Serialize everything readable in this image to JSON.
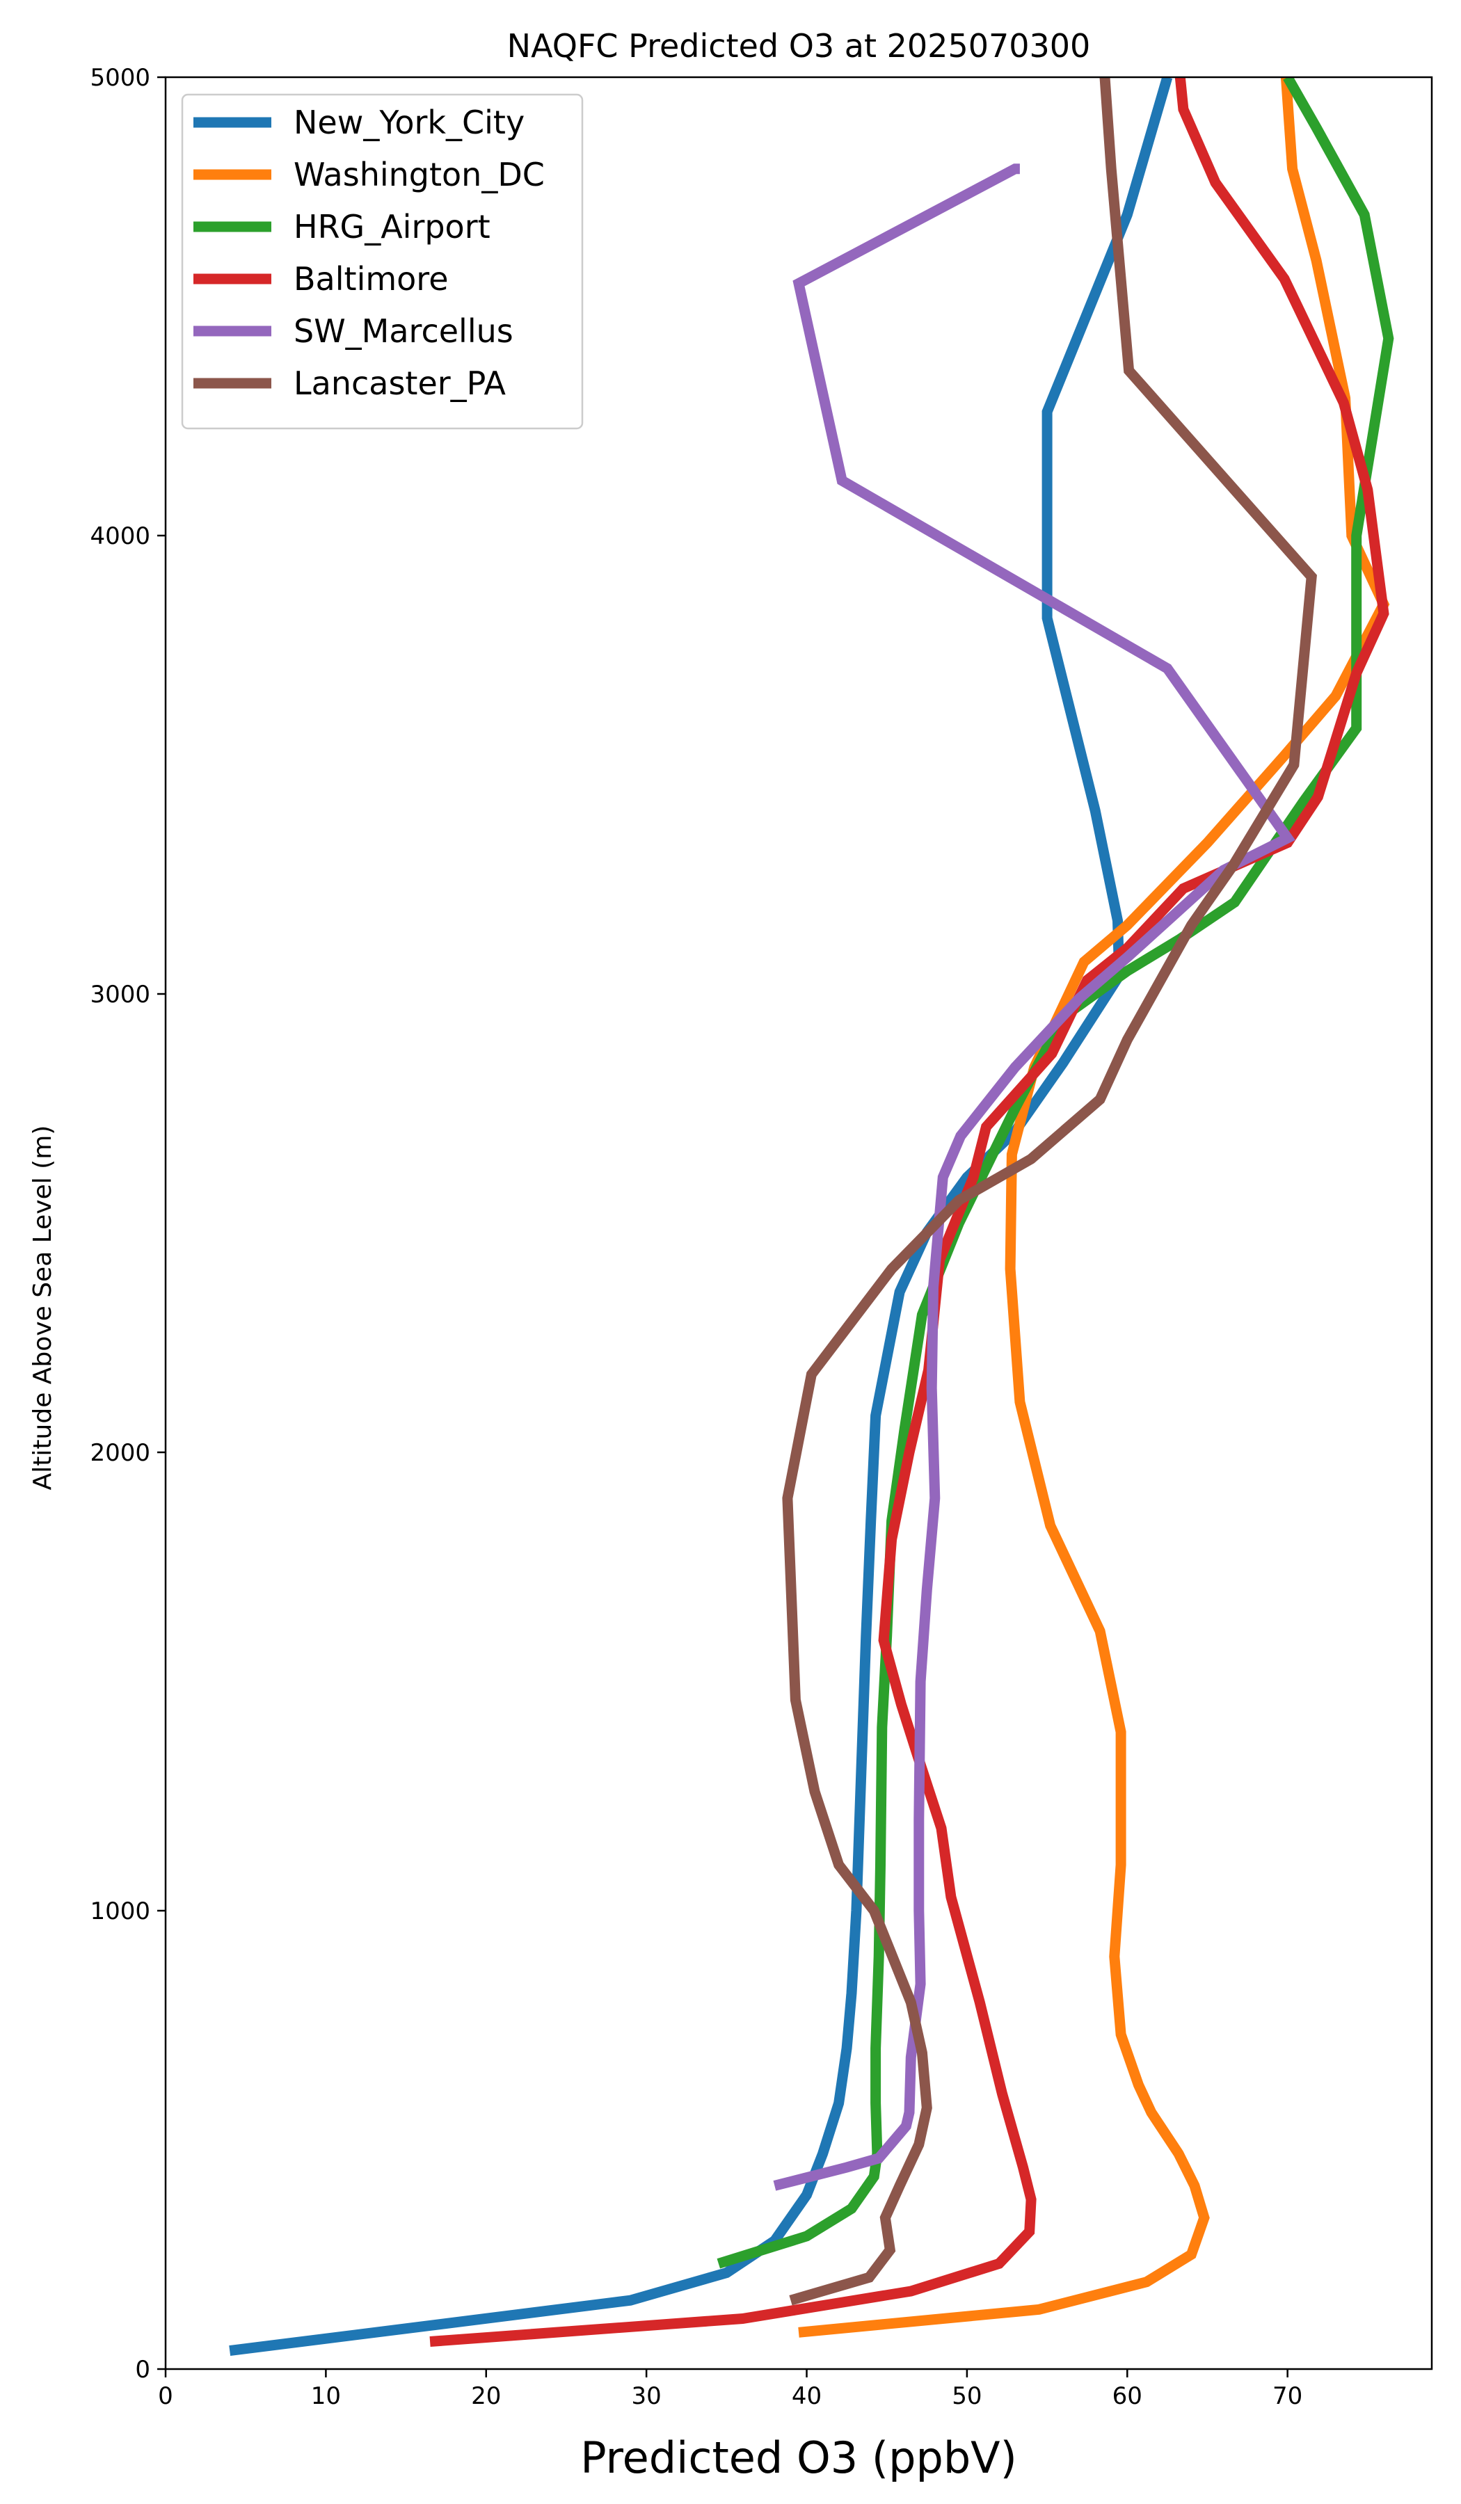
{
  "chart_data": {
    "type": "line",
    "title": "NAQFC Predicted O3 at 2025070300",
    "xlabel": "Predicted O3 (ppbV)",
    "ylabel": "Altitude Above Sea Level (m)",
    "xlim": [
      0,
      79
    ],
    "ylim": [
      0,
      5000
    ],
    "xticks": [
      0,
      10,
      20,
      30,
      40,
      50,
      60,
      70
    ],
    "yticks": [
      0,
      1000,
      2000,
      3000,
      4000,
      5000
    ],
    "grid": false,
    "legend_position": "top-left",
    "series": [
      {
        "name": "New_York_City",
        "color": "#1f77b4",
        "points": [
          [
            4,
            40
          ],
          [
            29,
            150
          ],
          [
            35,
            210
          ],
          [
            38,
            280
          ],
          [
            40,
            380
          ],
          [
            41,
            470
          ],
          [
            42,
            580
          ],
          [
            42.5,
            700
          ],
          [
            42.8,
            820
          ],
          [
            43.1,
            1000
          ],
          [
            43.4,
            1300
          ],
          [
            43.7,
            1600
          ],
          [
            44,
            1850
          ],
          [
            44.3,
            2080
          ],
          [
            45.8,
            2350
          ],
          [
            47.5,
            2480
          ],
          [
            50,
            2600
          ],
          [
            53,
            2700
          ],
          [
            56,
            2850
          ],
          [
            59.5,
            3040
          ],
          [
            59.4,
            3160
          ],
          [
            58,
            3400
          ],
          [
            55,
            3820
          ],
          [
            55,
            4270
          ],
          [
            60,
            4700
          ],
          [
            62.5,
            5000
          ]
        ]
      },
      {
        "name": "Washington_DC",
        "color": "#ff7f0e",
        "points": [
          [
            39.5,
            80
          ],
          [
            54.5,
            130
          ],
          [
            61.2,
            190
          ],
          [
            64,
            250
          ],
          [
            64.8,
            330
          ],
          [
            64.2,
            400
          ],
          [
            63.2,
            470
          ],
          [
            61.5,
            560
          ],
          [
            60.7,
            620
          ],
          [
            59.6,
            730
          ],
          [
            59.2,
            900
          ],
          [
            59.6,
            1100
          ],
          [
            59.6,
            1200
          ],
          [
            59.6,
            1390
          ],
          [
            58.3,
            1610
          ],
          [
            55.2,
            1840
          ],
          [
            53.3,
            2110
          ],
          [
            52.7,
            2400
          ],
          [
            52.8,
            2650
          ],
          [
            54.2,
            2840
          ],
          [
            57.3,
            3070
          ],
          [
            60,
            3150
          ],
          [
            65,
            3330
          ],
          [
            69.8,
            3520
          ],
          [
            73,
            3650
          ],
          [
            76,
            3850
          ],
          [
            74,
            4000
          ],
          [
            73.6,
            4300
          ],
          [
            71.8,
            4600
          ],
          [
            70.3,
            4800
          ],
          [
            69.9,
            5000
          ]
        ]
      },
      {
        "name": "HRG_Airport",
        "color": "#2ca02c",
        "points": [
          [
            34.5,
            230
          ],
          [
            40,
            290
          ],
          [
            42.8,
            350
          ],
          [
            44.2,
            420
          ],
          [
            44.4,
            470
          ],
          [
            44.3,
            580
          ],
          [
            44.3,
            700
          ],
          [
            44.5,
            900
          ],
          [
            44.6,
            1100
          ],
          [
            44.7,
            1400
          ],
          [
            45,
            1600
          ],
          [
            45.3,
            1850
          ],
          [
            46.1,
            2050
          ],
          [
            47.2,
            2300
          ],
          [
            49.5,
            2500
          ],
          [
            53,
            2750
          ],
          [
            56,
            2950
          ],
          [
            60,
            3050
          ],
          [
            63.3,
            3120
          ],
          [
            66.7,
            3200
          ],
          [
            71,
            3420
          ],
          [
            74.3,
            3580
          ],
          [
            74.3,
            3700
          ],
          [
            74.3,
            4000
          ],
          [
            76.3,
            4430
          ],
          [
            74.8,
            4700
          ],
          [
            71.8,
            4890
          ],
          [
            70,
            5000
          ]
        ]
      },
      {
        "name": "Baltimore",
        "color": "#d62728",
        "points": [
          [
            16.5,
            60
          ],
          [
            36,
            110
          ],
          [
            46.5,
            170
          ],
          [
            52,
            230
          ],
          [
            53.9,
            300
          ],
          [
            54,
            370
          ],
          [
            53.5,
            440
          ],
          [
            52.2,
            600
          ],
          [
            50.8,
            800
          ],
          [
            49,
            1030
          ],
          [
            48.4,
            1180
          ],
          [
            46.9,
            1340
          ],
          [
            45.9,
            1450
          ],
          [
            44.8,
            1590
          ],
          [
            45.3,
            1810
          ],
          [
            46.4,
            2000
          ],
          [
            47.6,
            2180
          ],
          [
            48.3,
            2420
          ],
          [
            50.4,
            2600
          ],
          [
            51.2,
            2710
          ],
          [
            55.3,
            2870
          ],
          [
            57.5,
            3030
          ],
          [
            60,
            3100
          ],
          [
            63.5,
            3230
          ],
          [
            70,
            3330
          ],
          [
            71.9,
            3430
          ],
          [
            74.3,
            3700
          ],
          [
            76,
            3830
          ],
          [
            75,
            4100
          ],
          [
            73.5,
            4290
          ],
          [
            69.8,
            4560
          ],
          [
            65.5,
            4770
          ],
          [
            63.5,
            4930
          ],
          [
            63.3,
            5000
          ]
        ]
      },
      {
        "name": "SW_Marcellus",
        "color": "#9467bd",
        "points": [
          [
            38,
            400
          ],
          [
            42.5,
            440
          ],
          [
            44.5,
            460
          ],
          [
            46.2,
            530
          ],
          [
            46.4,
            560
          ],
          [
            46.5,
            680
          ],
          [
            47.1,
            840
          ],
          [
            47,
            1000
          ],
          [
            47,
            1200
          ],
          [
            47.1,
            1500
          ],
          [
            47.5,
            1700
          ],
          [
            48,
            1900
          ],
          [
            47.8,
            2140
          ],
          [
            47.9,
            2360
          ],
          [
            48.5,
            2600
          ],
          [
            49.6,
            2690
          ],
          [
            53,
            2840
          ],
          [
            57,
            2990
          ],
          [
            60,
            3080
          ],
          [
            66,
            3270
          ],
          [
            70,
            3340
          ],
          [
            62.5,
            3710
          ],
          [
            42.2,
            4120
          ],
          [
            39.5,
            4550
          ],
          [
            53,
            4800
          ],
          [
            53.3,
            4800
          ],
          [
            53.3,
            4800
          ],
          [
            53.3,
            4800
          ],
          [
            53.3,
            4800
          ],
          [
            53.3,
            4800
          ]
        ]
      },
      {
        "name": "Lancaster_PA",
        "color": "#8c564b",
        "points": [
          [
            39,
            150
          ],
          [
            43.9,
            200
          ],
          [
            45.2,
            260
          ],
          [
            44.9,
            330
          ],
          [
            45.8,
            400
          ],
          [
            47,
            490
          ],
          [
            47.5,
            570
          ],
          [
            47.2,
            690
          ],
          [
            46.5,
            800
          ],
          [
            44.2,
            1000
          ],
          [
            42,
            1100
          ],
          [
            40.5,
            1260
          ],
          [
            39.3,
            1460
          ],
          [
            38.8,
            1900
          ],
          [
            40.3,
            2170
          ],
          [
            45.3,
            2400
          ],
          [
            49.5,
            2550
          ],
          [
            54,
            2640
          ],
          [
            58.3,
            2770
          ],
          [
            60,
            2900
          ],
          [
            64,
            3150
          ],
          [
            66.6,
            3280
          ],
          [
            70.4,
            3500
          ],
          [
            71.5,
            3910
          ],
          [
            60.1,
            4360
          ],
          [
            59,
            4800
          ],
          [
            58.6,
            5000
          ]
        ]
      }
    ]
  }
}
